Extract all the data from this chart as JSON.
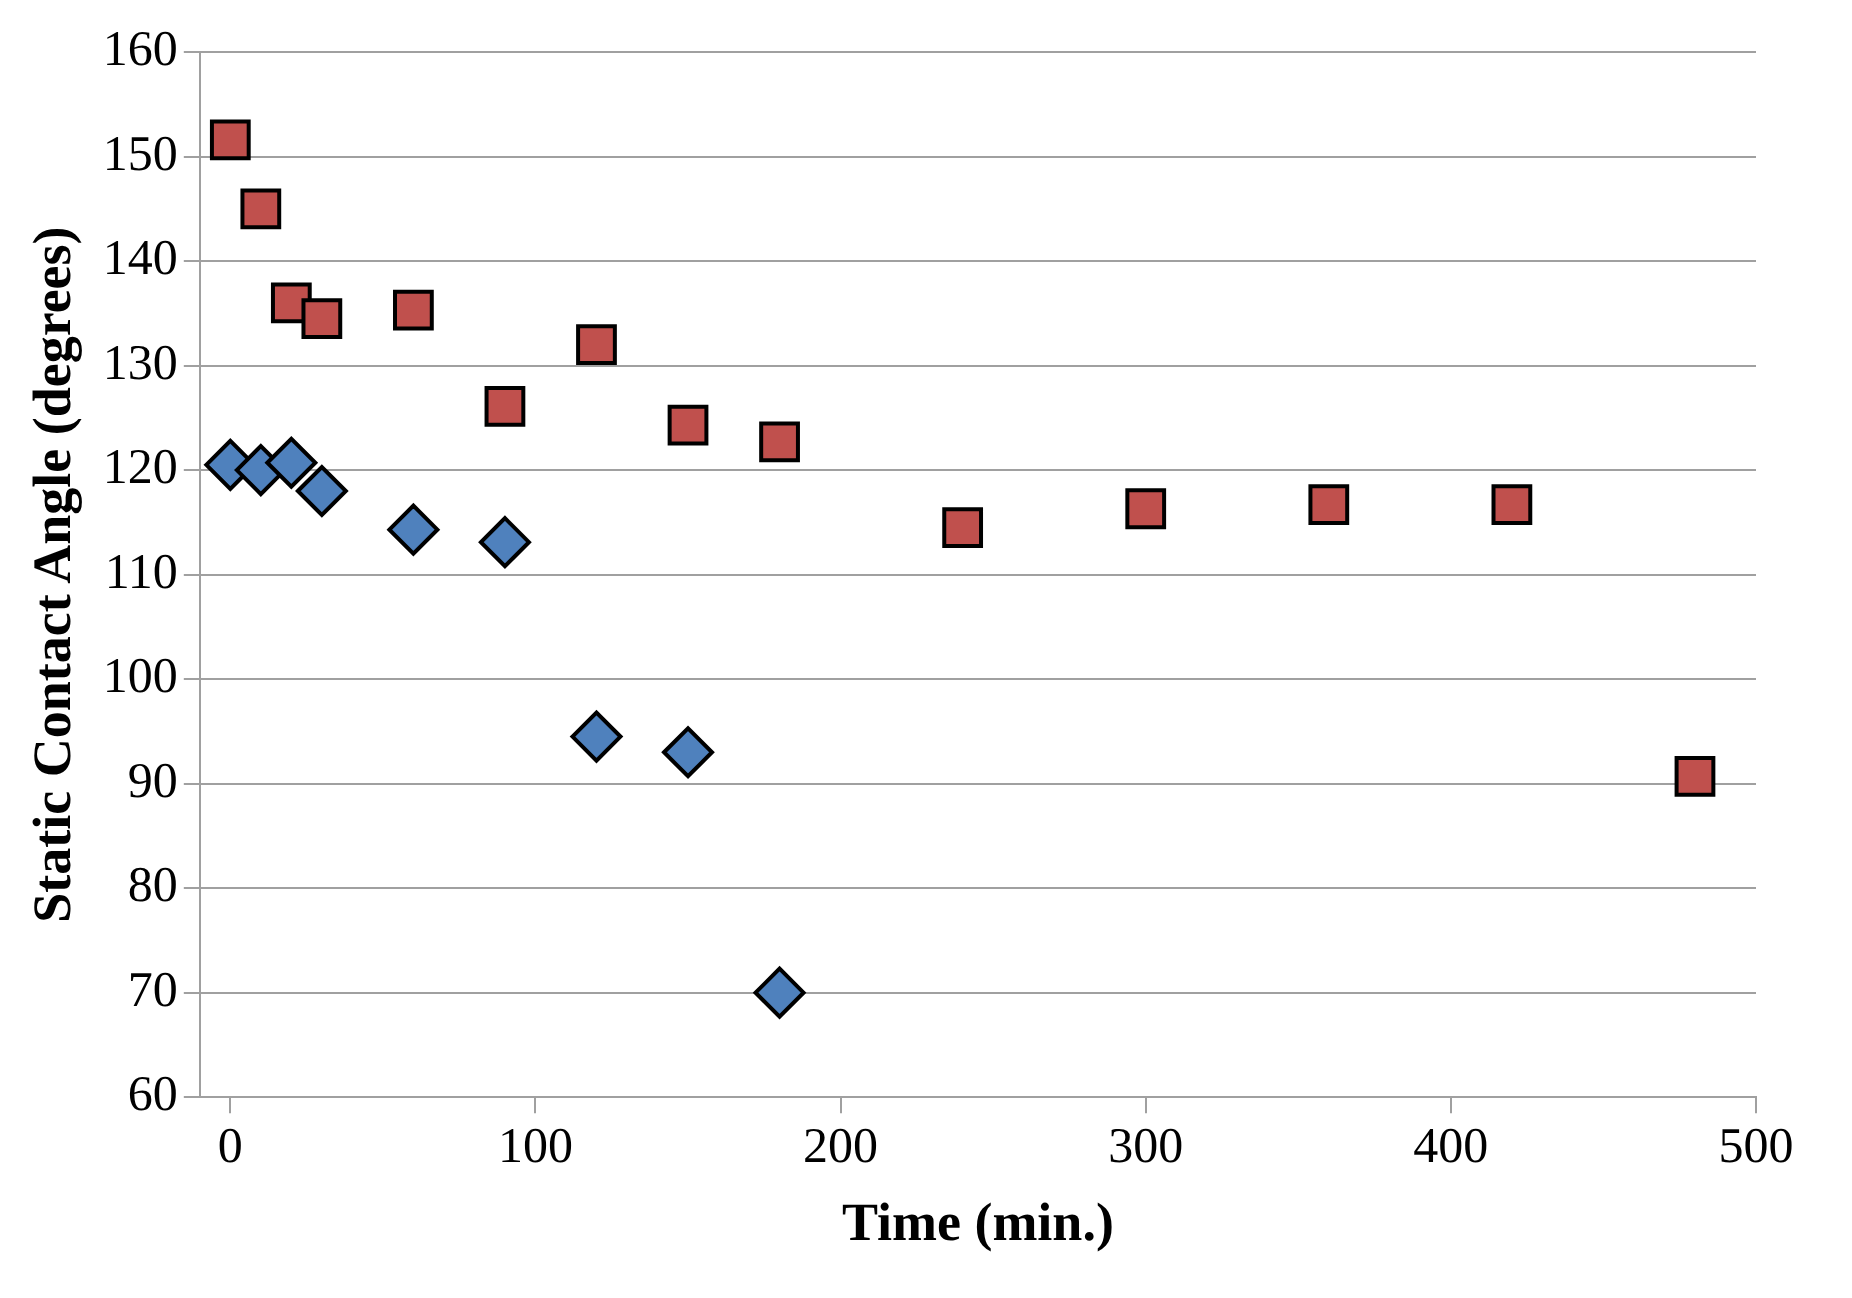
{
  "chart_data": {
    "type": "scatter",
    "xlabel": "Time (min.)",
    "ylabel": "Static Contact Angle (degrees)",
    "xlim": [
      -10,
      500
    ],
    "xticks": [
      0,
      100,
      200,
      300,
      400,
      500
    ],
    "ylim": [
      60,
      160
    ],
    "yticks": [
      60,
      70,
      80,
      90,
      100,
      110,
      120,
      130,
      140,
      150,
      160
    ],
    "grid": "y",
    "legend": false,
    "series": [
      {
        "color": "#4f81bd",
        "marker": "diamond",
        "x": [
          0,
          10,
          20,
          30,
          60,
          90,
          120,
          150,
          180
        ],
        "values": [
          120.5,
          120,
          120.7,
          118,
          114.3,
          113.1,
          94.5,
          93,
          70
        ]
      },
      {
        "color": "#c0504d",
        "marker": "square",
        "x": [
          0,
          10,
          20,
          30,
          60,
          90,
          120,
          150,
          180,
          240,
          300,
          360,
          420,
          480
        ],
        "values": [
          151.6,
          145,
          136,
          134.5,
          135.3,
          126.1,
          132,
          124.3,
          122.7,
          114.5,
          116.3,
          116.7,
          116.7,
          90.7
        ]
      }
    ]
  }
}
